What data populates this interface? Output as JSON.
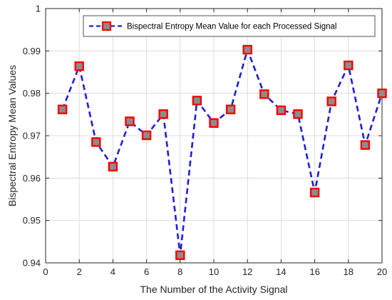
{
  "chart_data": {
    "type": "line",
    "title": "",
    "xlabel": "The Number of the Activity Signal",
    "ylabel": "Bispectral Entropy Mean Values",
    "xlim": [
      0,
      20
    ],
    "ylim": [
      0.94,
      1
    ],
    "xticks": [
      0,
      2,
      4,
      6,
      8,
      10,
      12,
      14,
      16,
      18,
      20
    ],
    "yticks": [
      0.94,
      0.95,
      0.96,
      0.97,
      0.98,
      0.99,
      1
    ],
    "xtick_labels": [
      "0",
      "2",
      "4",
      "6",
      "8",
      "10",
      "12",
      "14",
      "16",
      "18",
      "20"
    ],
    "ytick_labels": [
      "0.94",
      "0.95",
      "0.96",
      "0.97",
      "0.98",
      "0.99",
      "1"
    ],
    "grid": true,
    "legend_position": "top-right",
    "series": [
      {
        "name": "Bispectral Entropy Mean Value for each Processed Signal",
        "line_color": "#1f1fd9",
        "line_style": "dashed",
        "marker": "square",
        "marker_face_color": "#8c8c8c",
        "marker_edge_color": "#ff0000",
        "x": [
          1,
          2,
          3,
          4,
          5,
          6,
          7,
          8,
          9,
          10,
          11,
          12,
          13,
          14,
          15,
          16,
          17,
          18,
          19,
          20
        ],
        "values": [
          0.9762,
          0.9864,
          0.9685,
          0.9627,
          0.9734,
          0.9701,
          0.9751,
          0.9418,
          0.9783,
          0.973,
          0.9762,
          0.9903,
          0.9798,
          0.976,
          0.9751,
          0.9566,
          0.9781,
          0.9866,
          0.9678,
          0.98
        ]
      }
    ]
  }
}
